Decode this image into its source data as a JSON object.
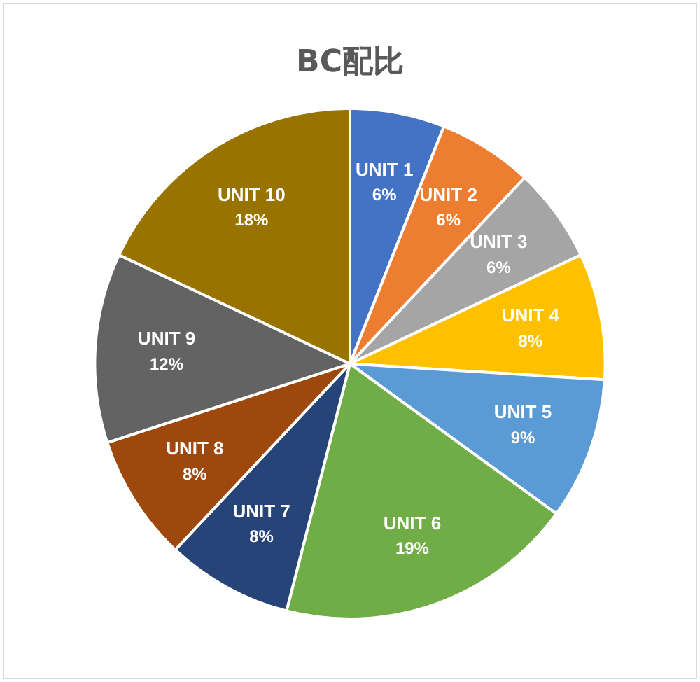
{
  "chart_data": {
    "type": "pie",
    "title": "BC配比",
    "categories": [
      "UNIT 1",
      "UNIT 2",
      "UNIT 3",
      "UNIT 4",
      "UNIT 5",
      "UNIT 6",
      "UNIT 7",
      "UNIT 8",
      "UNIT 9",
      "UNIT 10"
    ],
    "values": [
      6,
      6,
      6,
      8,
      9,
      19,
      8,
      8,
      12,
      18
    ],
    "value_labels": [
      "6%",
      "6%",
      "6%",
      "8%",
      "9%",
      "19%",
      "8%",
      "8%",
      "12%",
      "18%"
    ],
    "colors": [
      "#4472c4",
      "#ed7d31",
      "#a5a5a5",
      "#ffc000",
      "#5b9bd5",
      "#70ad47",
      "#264478",
      "#9e480e",
      "#636363",
      "#997300"
    ],
    "legend": false
  }
}
